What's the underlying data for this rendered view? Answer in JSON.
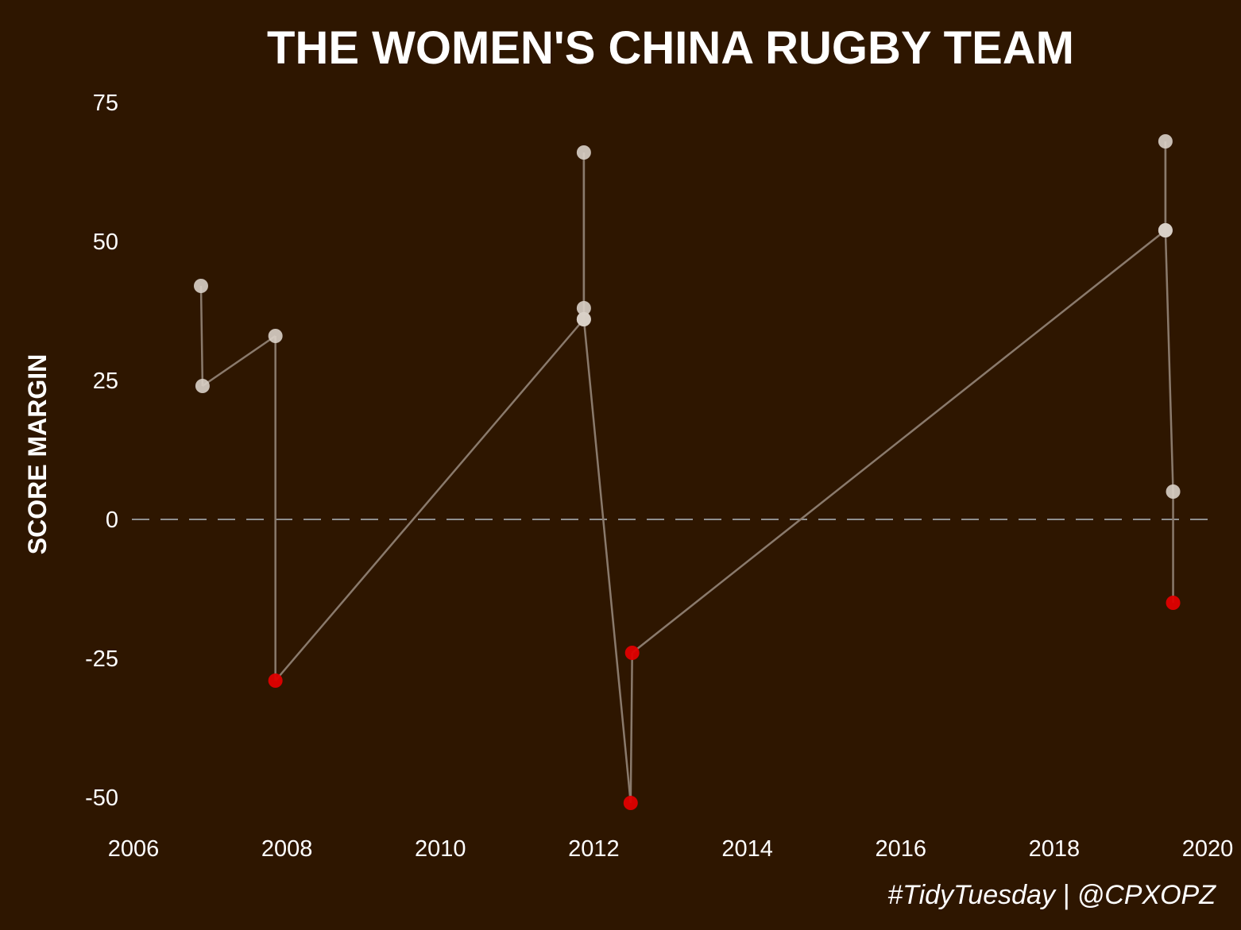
{
  "colors": {
    "background": "#2e1600",
    "text": "#ffffff",
    "win_point": "#d9d0c8",
    "loss_point": "#e00000",
    "connector_line": "#8a7a6c",
    "zero_line": "#8f8f8f"
  },
  "chart_data": {
    "type": "line",
    "title": "THE WOMEN'S CHINA RUGBY TEAM",
    "xlabel": "",
    "ylabel": "SCORE MARGIN",
    "caption": "#TidyTuesday | @CPXOPZ",
    "xlim": [
      2006,
      2020
    ],
    "ylim": [
      -55,
      78
    ],
    "x_ticks": [
      2006,
      2008,
      2010,
      2012,
      2014,
      2016,
      2018,
      2020
    ],
    "y_ticks": [
      75,
      50,
      25,
      0,
      -25,
      -50
    ],
    "x_tick_labels": [
      "2006",
      "2008",
      "2010",
      "2012",
      "2014",
      "2016",
      "2018",
      "2020"
    ],
    "y_tick_labels": [
      "75",
      "50",
      "25",
      "0",
      "-25",
      "-50"
    ],
    "reference_line": {
      "y": 0,
      "style": "dashed"
    },
    "grid": false,
    "legend": "none",
    "series": [
      {
        "points": [
          {
            "x": 2006.88,
            "y": 42
          },
          {
            "x": 2006.9,
            "y": 24
          },
          {
            "x": 2007.85,
            "y": 33
          },
          {
            "x": 2007.85,
            "y": -29
          },
          {
            "x": 2011.87,
            "y": 36
          },
          {
            "x": 2011.87,
            "y": 38
          },
          {
            "x": 2011.87,
            "y": 66
          },
          {
            "x": 2011.87,
            "y": 36
          },
          {
            "x": 2012.48,
            "y": -51
          },
          {
            "x": 2012.5,
            "y": -24
          },
          {
            "x": 2019.45,
            "y": 52
          },
          {
            "x": 2019.45,
            "y": 68
          },
          {
            "x": 2019.45,
            "y": 52
          },
          {
            "x": 2019.55,
            "y": 5
          },
          {
            "x": 2019.55,
            "y": -15
          }
        ]
      }
    ],
    "note_colors": "points with negative score margin are red, others light grey"
  }
}
